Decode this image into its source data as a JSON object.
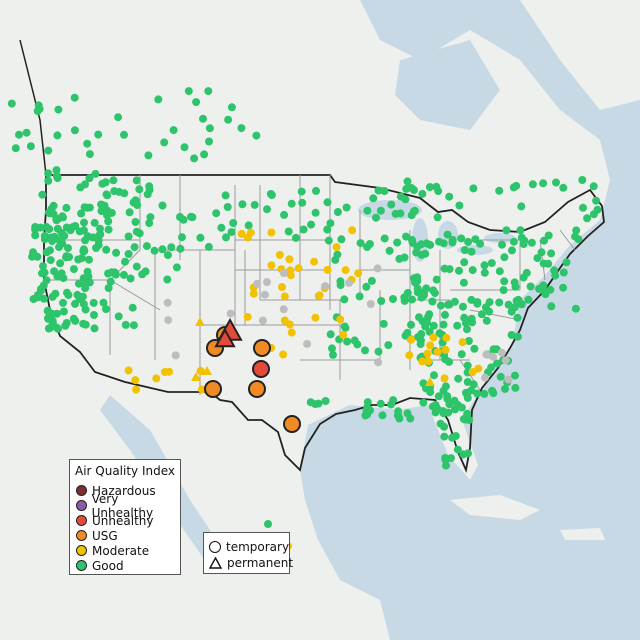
{
  "legend": {
    "title": "Air Quality Index",
    "items": [
      {
        "label": "Hazardous",
        "color": "#7e2d2d"
      },
      {
        "label": "Very Unhealthy",
        "color": "#8e5aa6"
      },
      {
        "label": "Unhealthy",
        "color": "#e34a3a"
      },
      {
        "label": "USG",
        "color": "#f08a24"
      },
      {
        "label": "Moderate",
        "color": "#f2c200"
      },
      {
        "label": "Good",
        "color": "#2ec46b"
      }
    ]
  },
  "monitor_types": {
    "items": [
      {
        "label": "temporary",
        "shape": "circle"
      },
      {
        "label": "permanent",
        "shape": "triangle"
      }
    ]
  },
  "colors": {
    "ocean": "#c8d9e6",
    "land": "#eef0ee",
    "border": "#222222",
    "state_line": "#9a9a9a",
    "no_data": "#bdbdbd"
  }
}
